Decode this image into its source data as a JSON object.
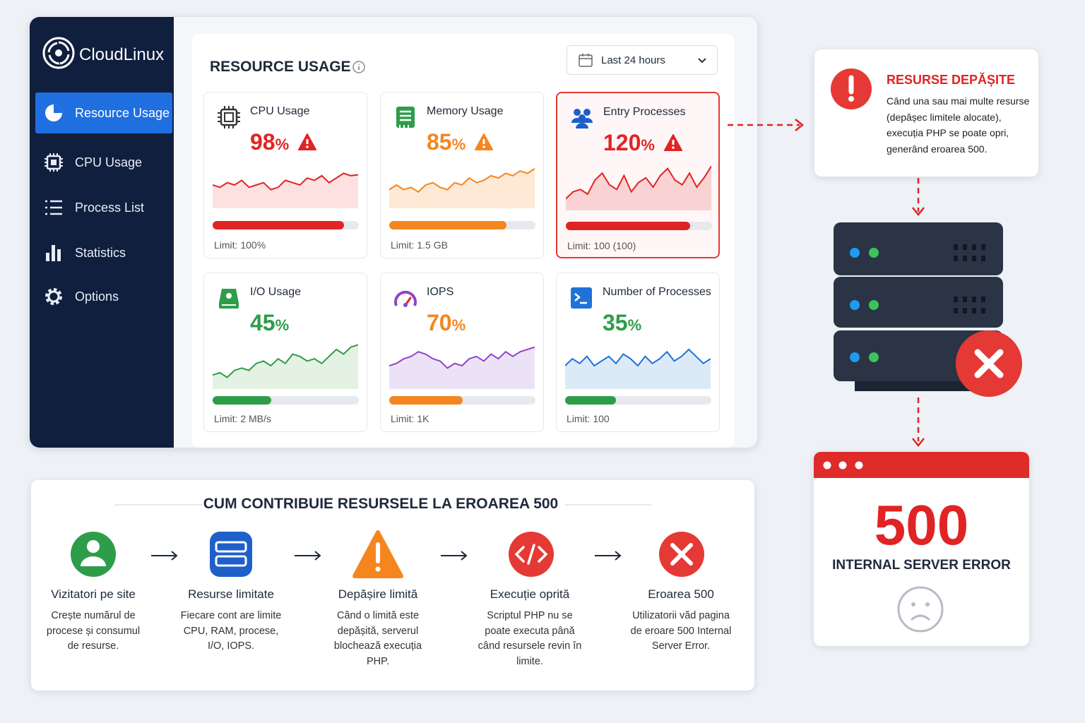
{
  "sidebar": {
    "brand": "CloudLinux",
    "items": [
      "Resource Usage",
      "CPU Usage",
      "Process List",
      "Statistics",
      "Options"
    ]
  },
  "panel": {
    "title": "RESOURCE USAGE",
    "range": "Last 24 hours",
    "cards": [
      {
        "title": "CPU Usage",
        "value": 98,
        "unit": "%",
        "limit": "Limit: 100%"
      },
      {
        "title": "Memory Usage",
        "value": 85,
        "unit": "%",
        "limit": "Limit: 1.5 GB"
      },
      {
        "title": "Entry Processes",
        "value": 120,
        "unit": "%",
        "limit": "Limit: 100 (100)"
      },
      {
        "title": "I/O Usage",
        "value": 45,
        "unit": "%",
        "limit": "Limit: 2 MB/s"
      },
      {
        "title": "IOPS",
        "value": 70,
        "unit": "%",
        "limit": "Limit: 1K"
      },
      {
        "title": "Number of Processes",
        "value": 35,
        "unit": "%",
        "limit": "Limit: 100"
      }
    ]
  },
  "alert": {
    "title": "RESURSE DEPĂȘITE",
    "text": "Când una sau mai multe resurse (depășec limitele alocate), execuția PHP se poate opri, generând eroarea 500."
  },
  "error": {
    "code": 500,
    "message": "INTERNAL SERVER ERROR"
  },
  "flow": {
    "title": "CUM CONTRIBUIE RESURSELE LA EROAREA 500",
    "steps": [
      {
        "title": "Vizitatori pe site",
        "text": "Crește numărul de procese și consumul de resurse."
      },
      {
        "title": "Resurse limitate",
        "text": "Fiecare cont are limite CPU, RAM, procese, I/O, IOPS."
      },
      {
        "title": "Depășire limită",
        "text": "Când o limită este depășită, serverul blochează execuția PHP."
      },
      {
        "title": "Execuție oprită",
        "text": "Scriptul PHP nu se poate executa până când resursele revin în limite."
      },
      {
        "title": "Eroarea 500",
        "text": "Utilizatorii văd pagina de eroare 500 Internal Server Error."
      }
    ]
  }
}
